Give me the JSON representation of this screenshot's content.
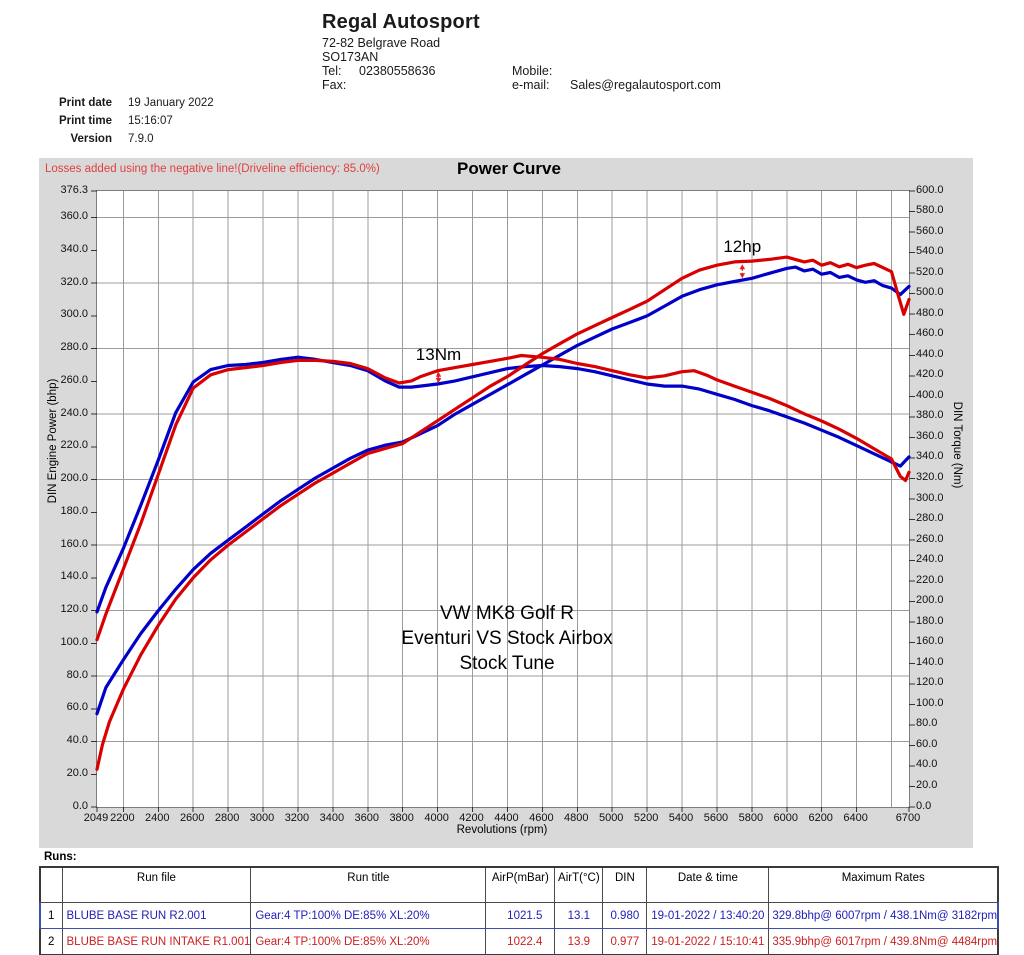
{
  "header": {
    "company_name": "Regal Autosport",
    "address_line1": "72-82 Belgrave Road",
    "address_line2": "SO173AN",
    "tel_label": "Tel:",
    "tel_value": "02380558636",
    "fax_label": "Fax:",
    "mobile_label": "Mobile:",
    "email_label": "e-mail:",
    "email_value": "Sales@regalautosport.com"
  },
  "print_info": {
    "date_label": "Print date",
    "date_value": "19 January 2022",
    "time_label": "Print time",
    "time_value": "15:16:07",
    "version_label": "Version",
    "version_value": "7.9.0"
  },
  "chart": {
    "losses_note": "Losses added using the negative line!(Driveline efficiency: 85.0%)",
    "title": "Power Curve",
    "y_left_title": "DIN Engine Power (bhp)",
    "y_right_title": "DIN Torque (Nm)",
    "x_axis_title": "Revolutions (rpm)",
    "center_label_lines": [
      "VW MK8 Golf R",
      "Eventuri VS Stock Airbox",
      "Stock Tune"
    ]
  },
  "chart_data": {
    "type": "line",
    "title": "Power Curve",
    "xlabel": "Revolutions (rpm)",
    "ylabel_left": "DIN Engine Power (bhp)",
    "ylabel_right": "DIN Torque (Nm)",
    "annotation_color": "#e02020",
    "x_axis": {
      "min": 2049,
      "max": 6700,
      "ticks": [
        2049,
        2200,
        2400,
        2600,
        2800,
        3000,
        3200,
        3400,
        3600,
        3800,
        4000,
        4200,
        4400,
        4600,
        4800,
        5000,
        5200,
        5400,
        5600,
        5800,
        6000,
        6200,
        6400,
        6700
      ]
    },
    "y_left": {
      "min": 0,
      "max": 376.3,
      "ticks": [
        0,
        20,
        40,
        60,
        80,
        100,
        120,
        140,
        160,
        180,
        200,
        220,
        240,
        260,
        280,
        300,
        320,
        340,
        360,
        376.3
      ]
    },
    "y_right": {
      "min": 0,
      "max": 600,
      "ticks": [
        0,
        20,
        40,
        60,
        80,
        100,
        120,
        140,
        160,
        180,
        200,
        220,
        240,
        260,
        280,
        300,
        320,
        340,
        360,
        380,
        400,
        420,
        440,
        460,
        480,
        500,
        520,
        540,
        560,
        580,
        600
      ]
    },
    "gridlines": {
      "rpm": [
        2200,
        2400,
        2600,
        2800,
        3000,
        3200,
        3400,
        3600,
        3800,
        4000,
        4200,
        4400,
        4600,
        4800,
        5000,
        5200,
        5400,
        5600,
        5800,
        6000,
        6200,
        6400,
        6600
      ],
      "power": [
        40,
        80,
        120,
        160,
        200,
        240,
        280,
        320,
        360
      ]
    },
    "series": [
      {
        "id": "stock-torque",
        "name": "BLUBE BASE RUN R2.001 torque (Nm)",
        "axis": "torque",
        "color": "#0000c8",
        "peak": "438.1Nm@ 3182rpm",
        "points": [
          [
            2049,
            190
          ],
          [
            2100,
            214
          ],
          [
            2200,
            252
          ],
          [
            2300,
            294
          ],
          [
            2400,
            338
          ],
          [
            2500,
            384
          ],
          [
            2600,
            414
          ],
          [
            2700,
            426
          ],
          [
            2800,
            430
          ],
          [
            2900,
            431
          ],
          [
            3000,
            433
          ],
          [
            3100,
            436
          ],
          [
            3200,
            438.1
          ],
          [
            3300,
            436
          ],
          [
            3400,
            433
          ],
          [
            3500,
            430
          ],
          [
            3600,
            425
          ],
          [
            3700,
            415
          ],
          [
            3780,
            409
          ],
          [
            3850,
            409
          ],
          [
            3900,
            410
          ],
          [
            4000,
            412
          ],
          [
            4100,
            415
          ],
          [
            4200,
            419
          ],
          [
            4300,
            423
          ],
          [
            4400,
            427
          ],
          [
            4500,
            429
          ],
          [
            4600,
            430
          ],
          [
            4700,
            429
          ],
          [
            4800,
            427
          ],
          [
            4900,
            424
          ],
          [
            5000,
            420
          ],
          [
            5100,
            416
          ],
          [
            5200,
            412
          ],
          [
            5300,
            410
          ],
          [
            5400,
            410
          ],
          [
            5500,
            407
          ],
          [
            5600,
            402
          ],
          [
            5700,
            397
          ],
          [
            5800,
            391
          ],
          [
            5900,
            386
          ],
          [
            6000,
            380
          ],
          [
            6100,
            374
          ],
          [
            6200,
            367
          ],
          [
            6300,
            360
          ],
          [
            6400,
            352
          ],
          [
            6500,
            344
          ],
          [
            6600,
            336
          ],
          [
            6650,
            332
          ],
          [
            6700,
            341
          ]
        ]
      },
      {
        "id": "stock-power",
        "name": "BLUBE BASE RUN R2.001 power (bhp)",
        "axis": "power",
        "color": "#0000c8",
        "peak": "329.8bhp@ 6007rpm",
        "points": [
          [
            2049,
            57
          ],
          [
            2100,
            73
          ],
          [
            2200,
            90
          ],
          [
            2300,
            106
          ],
          [
            2400,
            120
          ],
          [
            2500,
            133
          ],
          [
            2600,
            145
          ],
          [
            2700,
            155
          ],
          [
            2800,
            163
          ],
          [
            2900,
            171
          ],
          [
            3000,
            179
          ],
          [
            3100,
            187
          ],
          [
            3200,
            194
          ],
          [
            3300,
            201
          ],
          [
            3400,
            207
          ],
          [
            3500,
            213
          ],
          [
            3600,
            218
          ],
          [
            3700,
            221
          ],
          [
            3800,
            223
          ],
          [
            3900,
            228
          ],
          [
            4000,
            233
          ],
          [
            4100,
            240
          ],
          [
            4200,
            246
          ],
          [
            4300,
            252
          ],
          [
            4400,
            258
          ],
          [
            4500,
            264
          ],
          [
            4600,
            270
          ],
          [
            4700,
            276
          ],
          [
            4800,
            282
          ],
          [
            4900,
            287
          ],
          [
            5000,
            292
          ],
          [
            5100,
            296
          ],
          [
            5200,
            300
          ],
          [
            5300,
            306
          ],
          [
            5400,
            312
          ],
          [
            5500,
            316
          ],
          [
            5600,
            319
          ],
          [
            5700,
            321
          ],
          [
            5800,
            323
          ],
          [
            5900,
            326
          ],
          [
            6000,
            329
          ],
          [
            6050,
            329.8
          ],
          [
            6100,
            327.5
          ],
          [
            6150,
            328.5
          ],
          [
            6200,
            325.5
          ],
          [
            6250,
            326.5
          ],
          [
            6300,
            323.5
          ],
          [
            6350,
            324.5
          ],
          [
            6400,
            322
          ],
          [
            6450,
            320.5
          ],
          [
            6500,
            321.5
          ],
          [
            6550,
            318.5
          ],
          [
            6600,
            317
          ],
          [
            6650,
            313
          ],
          [
            6700,
            318
          ]
        ]
      },
      {
        "id": "intake-torque",
        "name": "BLUBE BASE RUN INTAKE R1.001 torque (Nm)",
        "axis": "torque",
        "color": "#d80000",
        "peak": "439.8Nm@ 4484rpm",
        "points": [
          [
            2049,
            163
          ],
          [
            2100,
            188
          ],
          [
            2200,
            232
          ],
          [
            2300,
            276
          ],
          [
            2400,
            324
          ],
          [
            2500,
            372
          ],
          [
            2600,
            408
          ],
          [
            2700,
            421
          ],
          [
            2800,
            426
          ],
          [
            2900,
            428
          ],
          [
            3000,
            430
          ],
          [
            3100,
            433
          ],
          [
            3200,
            435
          ],
          [
            3300,
            435
          ],
          [
            3400,
            434
          ],
          [
            3500,
            432
          ],
          [
            3600,
            427
          ],
          [
            3700,
            418
          ],
          [
            3780,
            413
          ],
          [
            3850,
            415
          ],
          [
            3900,
            419
          ],
          [
            4000,
            425
          ],
          [
            4100,
            428
          ],
          [
            4200,
            431
          ],
          [
            4300,
            434
          ],
          [
            4400,
            437
          ],
          [
            4480,
            439.8
          ],
          [
            4600,
            438
          ],
          [
            4700,
            436
          ],
          [
            4800,
            432
          ],
          [
            4900,
            429
          ],
          [
            5000,
            425
          ],
          [
            5100,
            421
          ],
          [
            5200,
            418
          ],
          [
            5300,
            420
          ],
          [
            5400,
            424
          ],
          [
            5470,
            425
          ],
          [
            5550,
            420
          ],
          [
            5600,
            416
          ],
          [
            5700,
            410
          ],
          [
            5800,
            404
          ],
          [
            5900,
            398
          ],
          [
            6000,
            391
          ],
          [
            6100,
            383
          ],
          [
            6200,
            376
          ],
          [
            6300,
            368
          ],
          [
            6400,
            359
          ],
          [
            6500,
            349
          ],
          [
            6600,
            339
          ],
          [
            6650,
            322
          ],
          [
            6680,
            318
          ],
          [
            6700,
            326
          ]
        ]
      },
      {
        "id": "intake-power",
        "name": "BLUBE BASE RUN INTAKE R1.001 power (bhp)",
        "axis": "power",
        "color": "#d80000",
        "peak": "335.9bhp@ 6017rpm",
        "points": [
          [
            2049,
            23
          ],
          [
            2080,
            38
          ],
          [
            2120,
            52
          ],
          [
            2200,
            72
          ],
          [
            2300,
            93
          ],
          [
            2400,
            111
          ],
          [
            2500,
            127
          ],
          [
            2600,
            140
          ],
          [
            2700,
            151
          ],
          [
            2800,
            160
          ],
          [
            2900,
            168
          ],
          [
            3000,
            176
          ],
          [
            3100,
            184
          ],
          [
            3200,
            191
          ],
          [
            3300,
            198
          ],
          [
            3400,
            204
          ],
          [
            3500,
            210
          ],
          [
            3600,
            216
          ],
          [
            3700,
            219
          ],
          [
            3800,
            222
          ],
          [
            3900,
            229
          ],
          [
            4000,
            236
          ],
          [
            4100,
            243
          ],
          [
            4200,
            250
          ],
          [
            4300,
            257
          ],
          [
            4400,
            263
          ],
          [
            4500,
            270
          ],
          [
            4600,
            277
          ],
          [
            4700,
            283
          ],
          [
            4800,
            289
          ],
          [
            4900,
            294
          ],
          [
            5000,
            299
          ],
          [
            5100,
            304
          ],
          [
            5200,
            309
          ],
          [
            5300,
            316
          ],
          [
            5400,
            323
          ],
          [
            5500,
            328
          ],
          [
            5600,
            331
          ],
          [
            5700,
            333
          ],
          [
            5800,
            333.5
          ],
          [
            5900,
            334.5
          ],
          [
            6000,
            335.9
          ],
          [
            6100,
            333
          ],
          [
            6150,
            334
          ],
          [
            6200,
            331
          ],
          [
            6250,
            332.5
          ],
          [
            6300,
            330
          ],
          [
            6350,
            331.5
          ],
          [
            6400,
            329.5
          ],
          [
            6450,
            331
          ],
          [
            6500,
            332
          ],
          [
            6550,
            329.5
          ],
          [
            6600,
            327
          ],
          [
            6640,
            312
          ],
          [
            6670,
            301
          ],
          [
            6700,
            310
          ]
        ]
      }
    ],
    "annotations": [
      {
        "label": "13Nm",
        "rpm": 4005,
        "axis": "torque",
        "text_value": 450,
        "from": 424,
        "to": 413
      },
      {
        "label": "12hp",
        "rpm": 5745,
        "axis": "power",
        "text_value": 348,
        "from": 331.5,
        "to": 323
      }
    ]
  },
  "runs_section": {
    "label": "Runs:",
    "table": {
      "headers": [
        "",
        "Run file",
        "Run title",
        "AirP(mBar)",
        "AirT(°C)",
        "DIN",
        "Date & time",
        "Maximum Rates"
      ],
      "rows": [
        {
          "num": "1",
          "run_file": "BLUBE BASE RUN R2.001",
          "run_title": "Gear:4 TP:100% DE:85% XL:20%",
          "airp": "1021.5",
          "airt": "13.1",
          "din": "0.980",
          "datetime": "19-01-2022 / 13:40:20",
          "max_rates": "329.8bhp@ 6007rpm / 438.1Nm@ 3182rpm",
          "color": "#2020bb",
          "highlight": true
        },
        {
          "num": "2",
          "run_file": "BLUBE BASE RUN INTAKE R1.001",
          "run_title": "Gear:4 TP:100% DE:85% XL:20%",
          "airp": "1022.4",
          "airt": "13.9",
          "din": "0.977",
          "datetime": "19-01-2022 / 15:10:41",
          "max_rates": "335.9bhp@ 6017rpm / 439.8Nm@ 4484rpm",
          "color": "#cc2020",
          "highlight": false
        }
      ]
    }
  }
}
